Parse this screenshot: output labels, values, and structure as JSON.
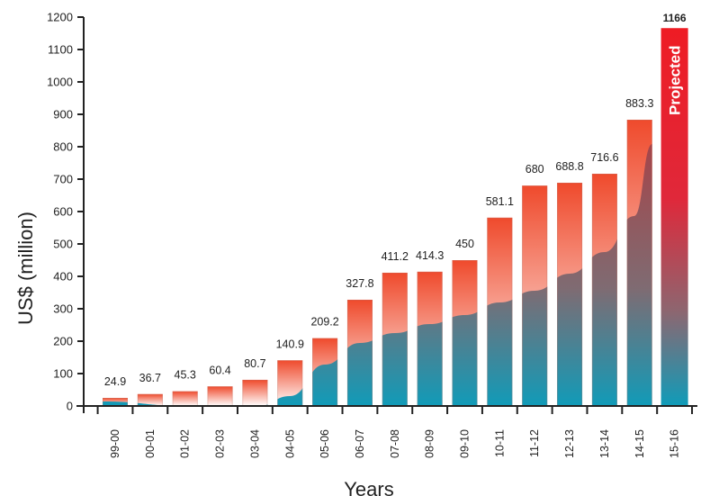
{
  "chart_data": {
    "type": "bar",
    "title": "",
    "xlabel": "Years",
    "ylabel": "US$ (million)",
    "ylim": [
      0,
      1200
    ],
    "yticks": [
      0,
      100,
      200,
      300,
      400,
      500,
      600,
      700,
      800,
      900,
      1000,
      1100,
      1200
    ],
    "categories": [
      "99-00",
      "00-01",
      "01-02",
      "02-03",
      "03-04",
      "04-05",
      "05-06",
      "06-07",
      "07-08",
      "08-09",
      "09-10",
      "10-11",
      "11-12",
      "12-13",
      "13-14",
      "14-15",
      "15-16"
    ],
    "values": [
      24.9,
      36.7,
      45.3,
      60.4,
      80.7,
      140.9,
      209.2,
      327.8,
      411.2,
      414.3,
      450,
      581.1,
      680,
      688.8,
      716.6,
      883.3,
      1166
    ],
    "data_labels": [
      "24.9",
      "36.7",
      "45.3",
      "60.4",
      "80.7",
      "140.9",
      "209.2",
      "327.8",
      "411.2",
      "414.3",
      "450",
      "581.1",
      "680",
      "688.8",
      "716.6",
      "883.3",
      "1166"
    ],
    "annotation": "Projected",
    "grid": false,
    "colors": {
      "bar_top_red": "#ee3024",
      "bar_mid_white": "#ffffff",
      "bar_bottom_teal": "#1597b4",
      "trend_dark": "#8a6a6e",
      "projected_red": "#ee1c24",
      "axis": "#222222",
      "text": "#222222"
    }
  }
}
